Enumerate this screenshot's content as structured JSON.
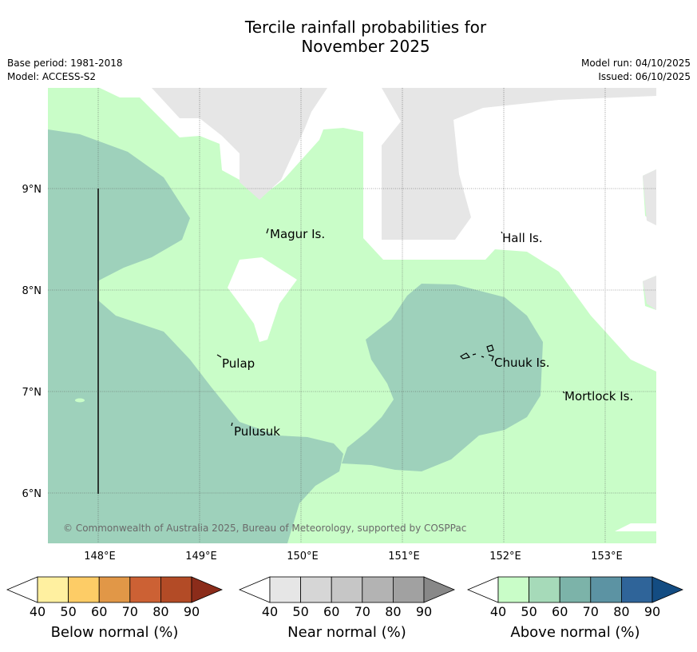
{
  "title_line1": "Tercile rainfall probabilities for",
  "title_line2": "November 2025",
  "meta": {
    "base_period": "Base period: 1981-2018",
    "model": "Model: ACCESS-S2",
    "model_run": "Model run: 04/10/2025",
    "issued": "Issued: 06/10/2025"
  },
  "map": {
    "lat_labels": [
      "9°N",
      "8°N",
      "7°N",
      "6°N"
    ],
    "lon_labels": [
      "148°E",
      "149°E",
      "150°E",
      "151°E",
      "152°E",
      "153°E"
    ],
    "places": [
      "Magur Is.",
      "Hall Is.",
      "Pulap",
      "Chuuk Is.",
      "Mortlock Is.",
      "Pulusuk"
    ],
    "copyright": "© Commonwealth of Australia 2025, Bureau of Meteorology, supported by COSPPac",
    "colors": {
      "above_40_50": "#c9fdc8",
      "above_50_60": "#9ed1bb",
      "missing": "#e6e6e6"
    }
  },
  "colorbars": [
    {
      "name": "below",
      "title": "Below normal (%)",
      "ticks": [
        "40",
        "50",
        "60",
        "70",
        "80",
        "90"
      ],
      "colors": [
        "#ffffff",
        "#fff0a0",
        "#fdcc66",
        "#e19747",
        "#cc6134",
        "#b34b26",
        "#8b2c1a"
      ]
    },
    {
      "name": "near",
      "title": "Near normal (%)",
      "ticks": [
        "40",
        "50",
        "60",
        "70",
        "80",
        "90"
      ],
      "colors": [
        "#ffffff",
        "#e6e6e6",
        "#d6d6d6",
        "#c6c6c6",
        "#b3b3b3",
        "#a1a1a1",
        "#888888"
      ]
    },
    {
      "name": "above",
      "title": "Above normal (%)",
      "ticks": [
        "40",
        "50",
        "60",
        "70",
        "80",
        "90"
      ],
      "colors": [
        "#ffffff",
        "#c9fdc8",
        "#a6dab9",
        "#7cb3a9",
        "#5c93a3",
        "#2f6499",
        "#134c82"
      ]
    }
  ]
}
